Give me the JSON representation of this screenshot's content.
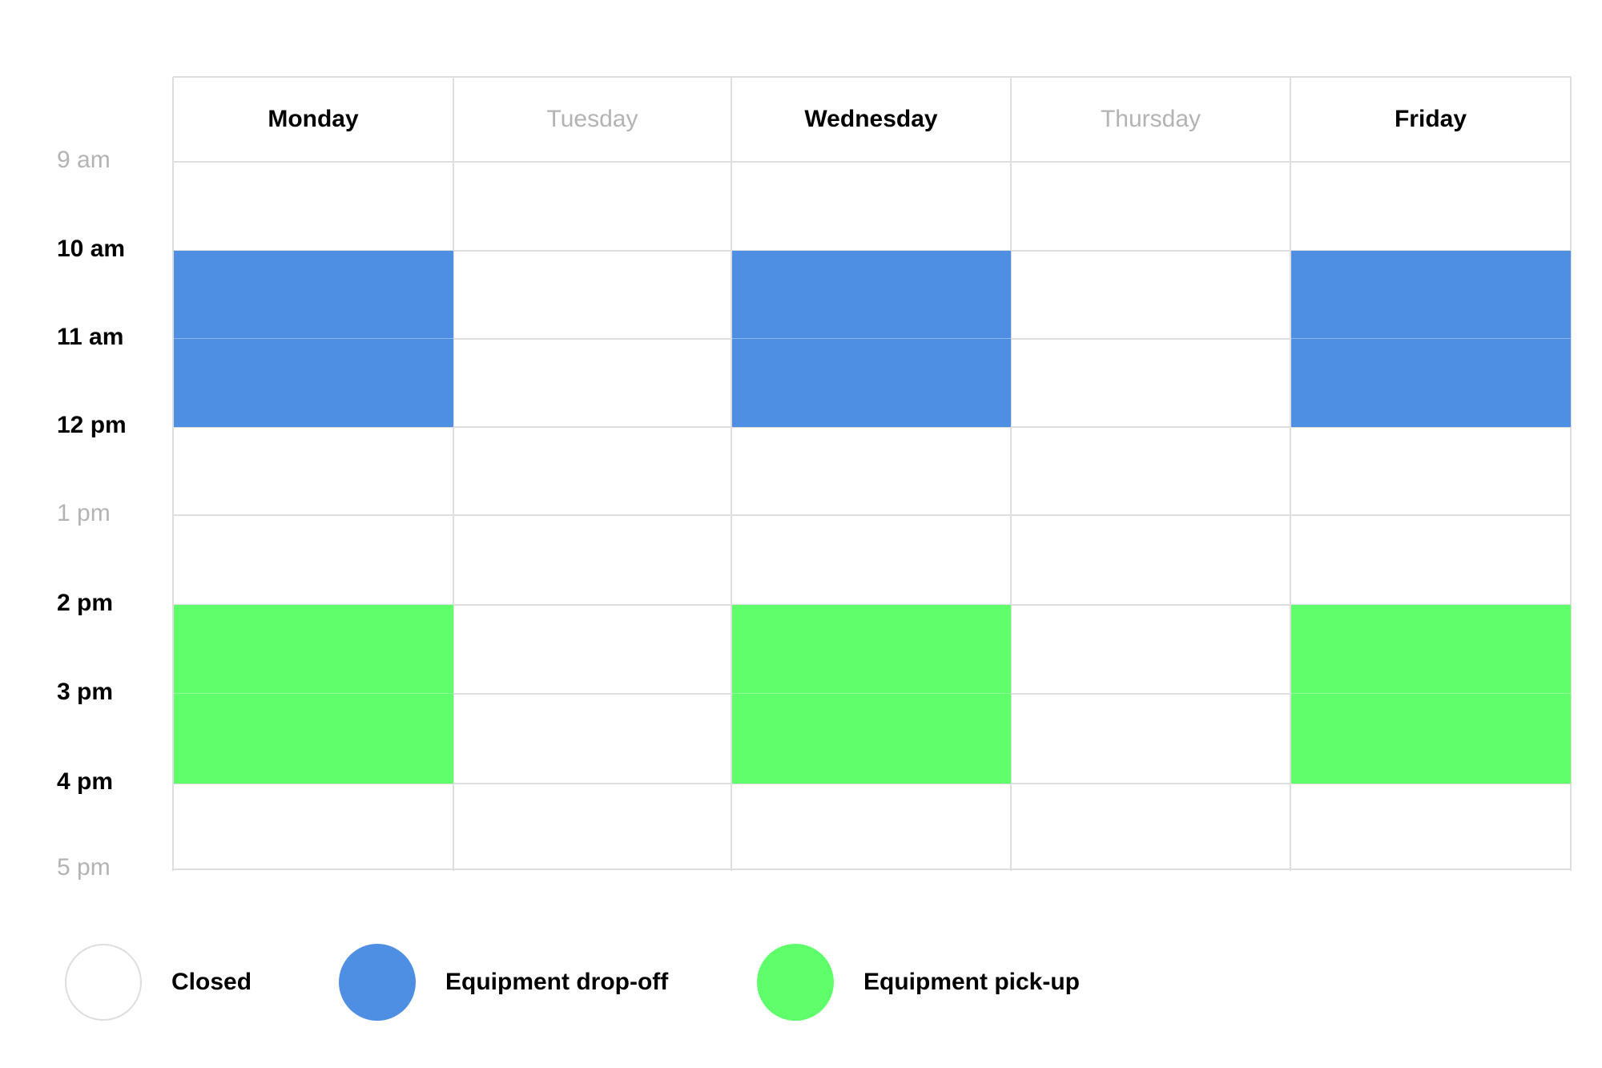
{
  "days": [
    {
      "label": "Monday",
      "status": "open"
    },
    {
      "label": "Tuesday",
      "status": "closed"
    },
    {
      "label": "Wednesday",
      "status": "open"
    },
    {
      "label": "Thursday",
      "status": "closed"
    },
    {
      "label": "Friday",
      "status": "open"
    }
  ],
  "times": [
    {
      "label": "9 am",
      "style": "minor"
    },
    {
      "label": "10 am",
      "style": "major"
    },
    {
      "label": "11 am",
      "style": "major"
    },
    {
      "label": "12 pm",
      "style": "major"
    },
    {
      "label": "1 pm",
      "style": "minor"
    },
    {
      "label": "2 pm",
      "style": "major"
    },
    {
      "label": "3 pm",
      "style": "major"
    },
    {
      "label": "4 pm",
      "style": "major"
    },
    {
      "label": "5 pm",
      "style": "minor"
    }
  ],
  "events": [
    {
      "day": "Monday",
      "start": "10 am",
      "end": "12 pm",
      "type": "dropoff"
    },
    {
      "day": "Wednesday",
      "start": "10 am",
      "end": "12 pm",
      "type": "dropoff"
    },
    {
      "day": "Friday",
      "start": "10 am",
      "end": "12 pm",
      "type": "dropoff"
    },
    {
      "day": "Monday",
      "start": "2 pm",
      "end": "4 pm",
      "type": "pickup"
    },
    {
      "day": "Wednesday",
      "start": "2 pm",
      "end": "4 pm",
      "type": "pickup"
    },
    {
      "day": "Friday",
      "start": "2 pm",
      "end": "4 pm",
      "type": "pickup"
    }
  ],
  "legend": [
    {
      "key": "closed",
      "label": "Closed",
      "color": "#ffffff"
    },
    {
      "key": "dropoff",
      "label": "Equipment drop-off",
      "color": "#4f8fe3"
    },
    {
      "key": "pickup",
      "label": "Equipment pick-up",
      "color": "#5eff6a"
    }
  ],
  "colors": {
    "grid": "#dedede",
    "open_text": "#000000",
    "closed_text": "#b3b3b3",
    "background": "#ffffff"
  }
}
